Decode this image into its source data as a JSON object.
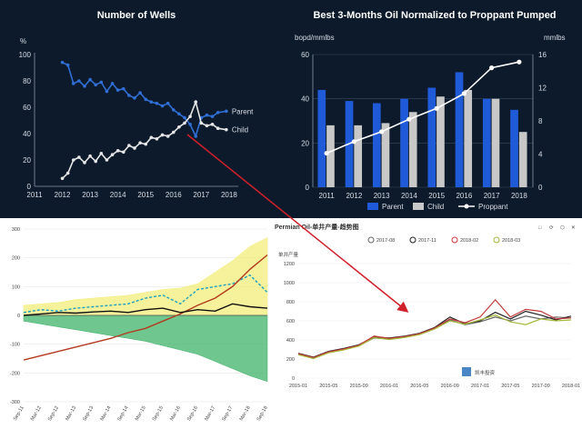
{
  "chart_data": [
    {
      "type": "line",
      "title": "Number of Wells",
      "ylabel": "%",
      "ylim": [
        0,
        100
      ],
      "y_ticks": [
        "0",
        "20",
        "40",
        "60",
        "80",
        "100"
      ],
      "x_ticks": [
        "2011",
        "2012",
        "2013",
        "2014",
        "2015",
        "2016",
        "2017",
        "2018"
      ],
      "xlim": [
        2011,
        2018.2
      ],
      "grid": false,
      "series": [
        {
          "name": "Parent",
          "color": "#2f6fd6",
          "x": [
            2012,
            2012.2,
            2012.4,
            2012.6,
            2012.8,
            2013,
            2013.2,
            2013.4,
            2013.6,
            2013.8,
            2014,
            2014.2,
            2014.4,
            2014.6,
            2014.8,
            2015,
            2015.2,
            2015.4,
            2015.6,
            2015.8,
            2016,
            2016.2,
            2016.4,
            2016.6,
            2016.8,
            2017,
            2017.2,
            2017.4,
            2017.6,
            2017.9
          ],
          "values": [
            94,
            92,
            78,
            80,
            76,
            81,
            77,
            79,
            72,
            78,
            73,
            74,
            69,
            67,
            71,
            66,
            64,
            63,
            61,
            63,
            58,
            55,
            52,
            47,
            38,
            52,
            54,
            53,
            56,
            57
          ]
        },
        {
          "name": "Child",
          "color": "#e6e6e6",
          "x": [
            2012,
            2012.2,
            2012.4,
            2012.6,
            2012.8,
            2013,
            2013.2,
            2013.4,
            2013.6,
            2013.8,
            2014,
            2014.2,
            2014.4,
            2014.6,
            2014.8,
            2015,
            2015.2,
            2015.4,
            2015.6,
            2015.8,
            2016,
            2016.2,
            2016.4,
            2016.6,
            2016.8,
            2017,
            2017.2,
            2017.4,
            2017.6,
            2017.9
          ],
          "values": [
            6,
            10,
            20,
            22,
            18,
            23,
            19,
            25,
            20,
            24,
            27,
            26,
            31,
            29,
            33,
            32,
            37,
            36,
            39,
            38,
            41,
            45,
            48,
            53,
            64,
            48,
            46,
            47,
            44,
            43
          ]
        }
      ]
    },
    {
      "type": "bar",
      "title": "Best 3-Months Oil Normalized to Proppant Pumped",
      "ylabel": "bopd/mmlbs",
      "y2label": "mmlbs",
      "ylim": [
        0,
        60
      ],
      "y2lim": [
        0,
        16
      ],
      "y_ticks": [
        "0",
        "20",
        "40",
        "60"
      ],
      "y2_ticks": [
        "0",
        "4",
        "8",
        "12",
        "16"
      ],
      "categories": [
        "2011",
        "2012",
        "2013",
        "2014",
        "2015",
        "2016",
        "2017",
        "2018"
      ],
      "legend": "bottom",
      "series": [
        {
          "name": "Parent",
          "kind": "bar",
          "axis": "left",
          "color": "#1f5bd8",
          "values": [
            44,
            39,
            38,
            40,
            45,
            52,
            40,
            35
          ]
        },
        {
          "name": "Child",
          "kind": "bar",
          "axis": "left",
          "color": "#c8c8c8",
          "values": [
            28,
            28,
            29,
            34,
            41,
            44,
            40,
            25
          ]
        },
        {
          "name": "Proppant",
          "kind": "line",
          "axis": "right",
          "color": "#ffffff",
          "values": [
            4.1,
            5.5,
            6.7,
            8.2,
            9.5,
            11.3,
            14.4,
            15.1
          ]
        }
      ]
    },
    {
      "type": "area",
      "title": "",
      "ylim": [
        -300,
        300
      ],
      "y_ticks": [
        "300",
        "200",
        "100",
        "0",
        "-100",
        "-200",
        "-300"
      ],
      "x_ticks": [
        "Sep-11",
        "Mar-12",
        "Sep-12",
        "Mar-13",
        "Sep-13",
        "Mar-14",
        "Sep-14",
        "Mar-15",
        "Sep-15",
        "Mar-16",
        "Sep-16",
        "Mar-17",
        "Sep-17",
        "Mar-18",
        "Sep-18"
      ],
      "x": [
        0,
        1,
        2,
        3,
        4,
        5,
        6,
        7,
        8,
        9,
        10,
        11,
        12,
        13,
        14
      ],
      "series": [
        {
          "name": "",
          "kind": "area",
          "color": "#f2ee7a",
          "values": [
            35,
            40,
            45,
            55,
            60,
            65,
            70,
            80,
            90,
            95,
            110,
            150,
            190,
            240,
            270
          ]
        },
        {
          "name": "",
          "kind": "area",
          "color": "#3fb36a",
          "values": [
            -20,
            -30,
            -40,
            -50,
            -60,
            -70,
            -80,
            -90,
            -105,
            -120,
            -135,
            -160,
            -185,
            -210,
            -230
          ]
        },
        {
          "name": "",
          "kind": "line",
          "color": "#1e9ec2",
          "values": [
            10,
            20,
            15,
            25,
            30,
            35,
            40,
            60,
            70,
            40,
            90,
            100,
            110,
            140,
            80
          ]
        },
        {
          "name": "",
          "kind": "line",
          "color": "#b33a1e",
          "values": [
            -155,
            -140,
            -125,
            -110,
            -95,
            -80,
            -60,
            -45,
            -20,
            5,
            35,
            60,
            100,
            160,
            210
          ]
        },
        {
          "name": "",
          "kind": "line",
          "color": "#111111",
          "values": [
            0,
            5,
            10,
            8,
            12,
            15,
            10,
            20,
            25,
            10,
            20,
            15,
            40,
            30,
            25
          ]
        }
      ]
    },
    {
      "type": "line",
      "title": "Permian Oil-单井产量-趋势图",
      "ylabel": "单井产量",
      "ylim": [
        0,
        1200
      ],
      "y_ticks": [
        "0",
        "200",
        "400",
        "600",
        "800",
        "1000",
        "1200"
      ],
      "x_ticks": [
        "2015-01",
        "2015-03",
        "2015-05",
        "2015-07",
        "2015-09",
        "2015-11",
        "2016-01",
        "2016-03",
        "2016-05",
        "2016-07",
        "2016-09",
        "2016-11",
        "2017-01",
        "2017-03",
        "2017-05",
        "2017-07",
        "2017-09",
        "2017-11",
        "2018-01"
      ],
      "x": [
        0,
        1,
        2,
        3,
        4,
        5,
        6,
        7,
        8,
        9,
        10,
        11,
        12,
        13,
        14,
        15,
        16,
        17,
        18
      ],
      "legend": "top",
      "controls": [
        "□",
        "⟳",
        "⬡",
        "✕"
      ],
      "watermark": "凯丰投资",
      "series": [
        {
          "name": "2017-08",
          "color": "#666666",
          "values": [
            250,
            210,
            270,
            300,
            340,
            420,
            410,
            430,
            460,
            520,
            610,
            560,
            590,
            640,
            600,
            650,
            620,
            640,
            630
          ]
        },
        {
          "name": "2017-11",
          "color": "#222222",
          "values": [
            260,
            220,
            280,
            310,
            350,
            430,
            420,
            440,
            470,
            530,
            640,
            570,
            600,
            690,
            620,
            700,
            660,
            610,
            650
          ]
        },
        {
          "name": "2018-02",
          "color": "#c43a3a",
          "values": [
            255,
            215,
            275,
            305,
            345,
            440,
            415,
            435,
            465,
            525,
            620,
            580,
            640,
            820,
            640,
            720,
            700,
            620,
            630
          ]
        },
        {
          "name": "2018-03",
          "color": "#a5b83a",
          "values": [
            245,
            205,
            265,
            295,
            335,
            425,
            405,
            425,
            455,
            515,
            600,
            565,
            610,
            660,
            590,
            560,
            620,
            600,
            610
          ]
        }
      ]
    }
  ]
}
